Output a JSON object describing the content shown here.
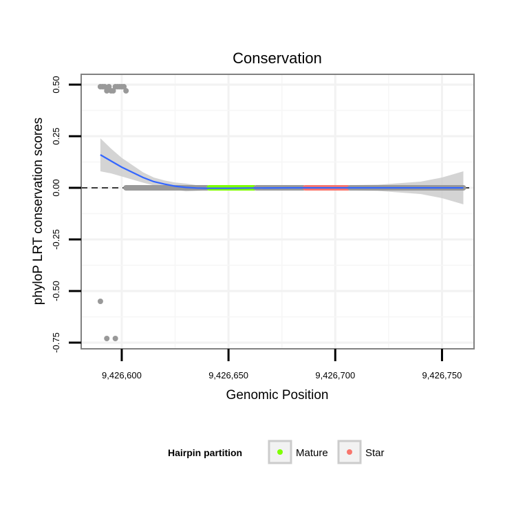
{
  "chart_data": {
    "type": "scatter",
    "title": "Conservation",
    "xlabel": "Genomic Position",
    "ylabel": "phyloP LRT conservation scores",
    "xlim": [
      9426581,
      9426765
    ],
    "ylim": [
      -0.78,
      0.55
    ],
    "x_ticks": [
      9426600,
      9426650,
      9426700,
      9426750
    ],
    "x_tick_labels": [
      "9,426,600",
      "9,426,650",
      "9,426,700",
      "9,426,750"
    ],
    "y_ticks": [
      0.5,
      0.25,
      0.0,
      -0.25,
      -0.5,
      -0.75
    ],
    "y_tick_labels": [
      "0.50",
      "0.25",
      "0.00",
      "-0.25",
      "-0.50",
      "-0.75"
    ],
    "grid": true,
    "reference_line": {
      "y": 0.0,
      "style": "dashed"
    },
    "points": {
      "other": {
        "color": "#999999",
        "x": [
          9426590,
          9426591,
          9426592,
          9426593,
          9426594,
          9426595,
          9426596,
          9426597,
          9426598,
          9426599,
          9426600,
          9426601,
          9426602,
          9426590,
          9426593,
          9426597
        ],
        "y": [
          0.49,
          0.49,
          0.49,
          0.47,
          0.49,
          0.47,
          0.47,
          0.49,
          0.49,
          0.49,
          0.49,
          0.49,
          0.47,
          -0.55,
          -0.73,
          -0.73
        ]
      },
      "other_zero": {
        "color": "#999999",
        "x_from": 9426602,
        "x_to": 9426640,
        "y": 0.0
      },
      "mature": {
        "color": "#7FFF00",
        "x_from": 9426641,
        "x_to": 9426662,
        "y": 0.0
      },
      "middle": {
        "color": "#999999",
        "x_from": 9426663,
        "x_to": 9426685,
        "y": 0.0
      },
      "star": {
        "color": "#F8766D",
        "x_from": 9426686,
        "x_to": 9426706,
        "y": 0.0
      },
      "tail": {
        "color": "#999999",
        "x_from": 9426707,
        "x_to": 9426760,
        "y": 0.0
      }
    },
    "smooth": {
      "color": "#3366FF",
      "ribbon_color": "#cccccc",
      "x": [
        9426590,
        9426595,
        9426600,
        9426605,
        9426610,
        9426615,
        9426620,
        9426625,
        9426630,
        9426635,
        9426640,
        9426650,
        9426660,
        9426680,
        9426700,
        9426720,
        9426740,
        9426750,
        9426760
      ],
      "y": [
        0.16,
        0.13,
        0.1,
        0.075,
        0.05,
        0.03,
        0.018,
        0.008,
        0.002,
        -0.001,
        -0.002,
        -0.002,
        -0.001,
        0.0,
        0.0,
        0.0,
        0.0,
        0.0,
        0.0
      ],
      "lower": [
        0.08,
        0.07,
        0.055,
        0.04,
        0.025,
        0.012,
        0.0,
        -0.01,
        -0.017,
        -0.015,
        -0.012,
        -0.01,
        -0.012,
        -0.012,
        -0.012,
        -0.015,
        -0.03,
        -0.05,
        -0.08
      ],
      "upper": [
        0.24,
        0.19,
        0.145,
        0.11,
        0.075,
        0.05,
        0.036,
        0.026,
        0.021,
        0.013,
        0.008,
        0.006,
        0.01,
        0.012,
        0.012,
        0.015,
        0.03,
        0.05,
        0.08
      ]
    },
    "legend": {
      "title": "Hairpin partition",
      "position": "bottom",
      "entries": [
        {
          "label": "Mature",
          "color": "#7FFF00"
        },
        {
          "label": "Star",
          "color": "#F8766D"
        }
      ]
    }
  }
}
